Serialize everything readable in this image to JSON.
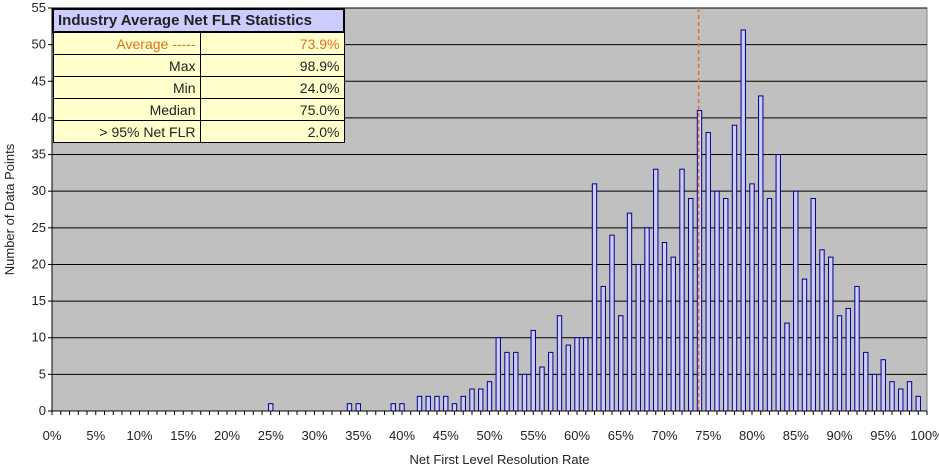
{
  "chart_data": {
    "type": "bar",
    "xlabel": "Net First Level Resolution Rate",
    "ylabel": "Number of Data Points",
    "xlim": [
      0,
      100
    ],
    "ylim": [
      0,
      55
    ],
    "y_ticks": [
      0,
      5,
      10,
      15,
      20,
      25,
      30,
      35,
      40,
      45,
      50,
      55
    ],
    "x_ticks": [
      "0%",
      "5%",
      "10%",
      "15%",
      "20%",
      "25%",
      "30%",
      "35%",
      "40%",
      "45%",
      "50%",
      "55%",
      "60%",
      "65%",
      "70%",
      "75%",
      "80%",
      "85%",
      "90%",
      "95%",
      "100%"
    ],
    "grid": true,
    "plot_background": "#c0c0c0",
    "bar_fill": "#ccccff",
    "bar_edge": "#000080",
    "average_line": {
      "x": 73.9,
      "color": "#e07020",
      "style": "dashed"
    },
    "x": [
      25,
      34,
      35,
      39,
      40,
      42,
      43,
      44,
      45,
      46,
      47,
      48,
      49,
      50,
      51,
      52,
      53,
      54,
      55,
      56,
      57,
      58,
      59,
      60,
      61,
      62,
      63,
      64,
      65,
      66,
      67,
      68,
      69,
      70,
      71,
      72,
      73,
      74,
      75,
      76,
      77,
      78,
      79,
      80,
      81,
      82,
      83,
      84,
      85,
      86,
      87,
      88,
      89,
      90,
      91,
      92,
      93,
      94,
      95,
      96,
      97,
      98,
      99
    ],
    "values": [
      1,
      1,
      1,
      1,
      1,
      2,
      2,
      2,
      2,
      1,
      2,
      3,
      3,
      4,
      10,
      8,
      8,
      5,
      11,
      6,
      8,
      13,
      9,
      10,
      10,
      31,
      17,
      24,
      13,
      27,
      20,
      25,
      33,
      23,
      21,
      33,
      29,
      41,
      38,
      30,
      29,
      39,
      52,
      31,
      43,
      29,
      35,
      12,
      30,
      18,
      29,
      22,
      21,
      13,
      14,
      17,
      8,
      5,
      7,
      4,
      3,
      4,
      2
    ]
  },
  "stats_table": {
    "title": "Industry Average Net FLR Statistics",
    "rows": [
      {
        "label": "Average -----",
        "value": "73.9%"
      },
      {
        "label": "Max",
        "value": "98.9%"
      },
      {
        "label": "Min",
        "value": "24.0%"
      },
      {
        "label": "Median",
        "value": "75.0%"
      },
      {
        "label": "> 95% Net FLR",
        "value": "2.0%"
      }
    ]
  }
}
